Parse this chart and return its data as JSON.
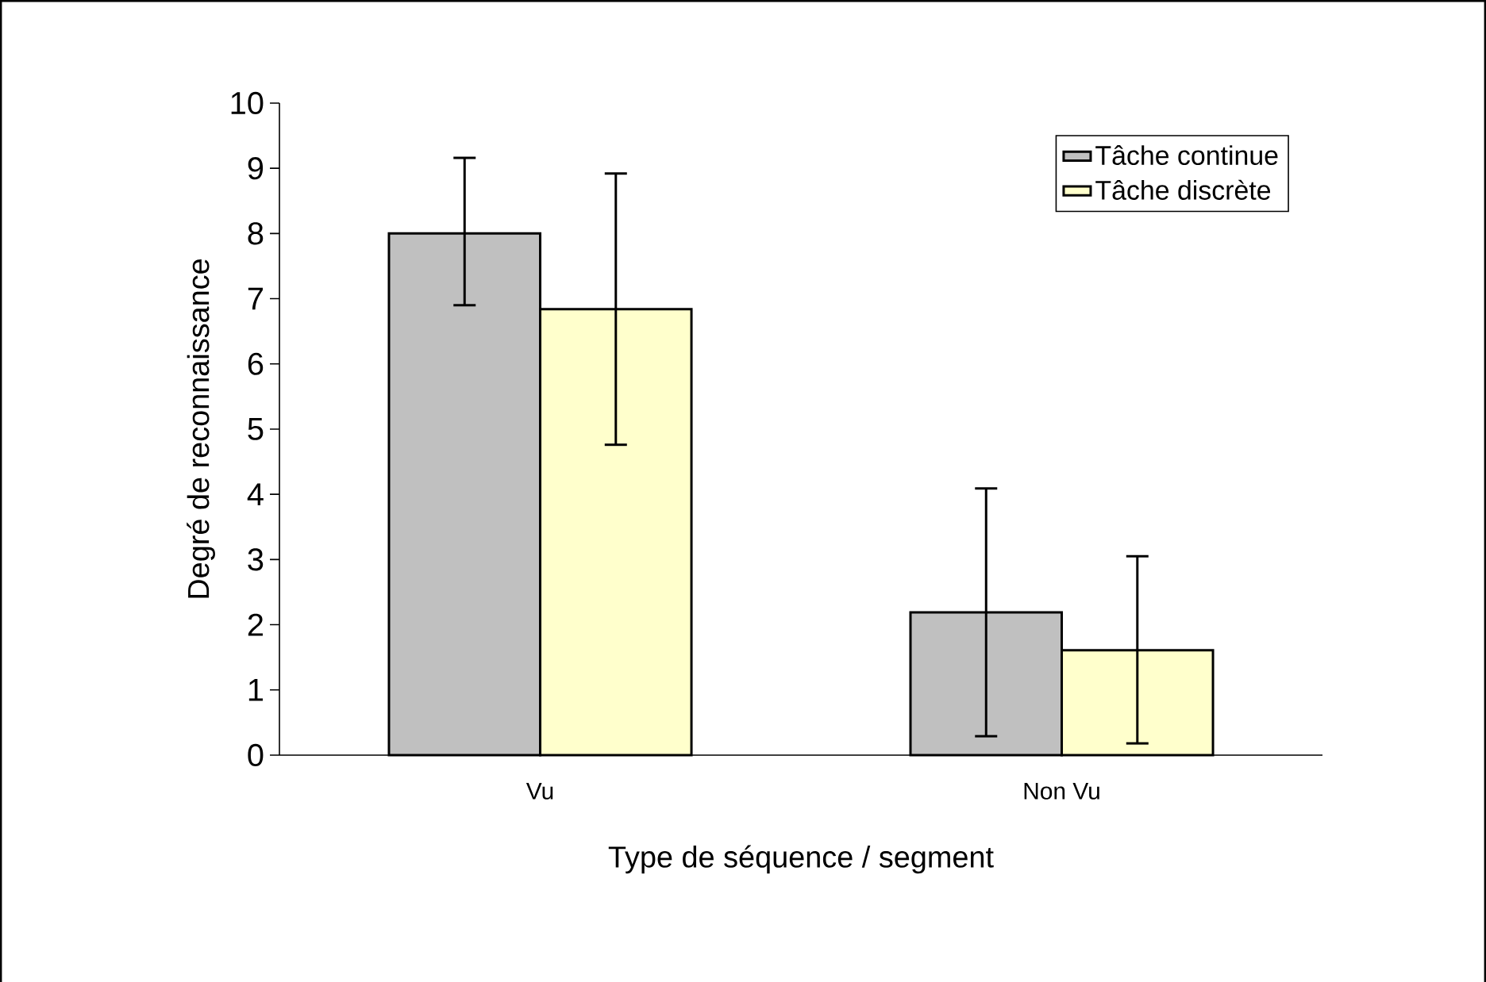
{
  "chart_data": {
    "type": "bar",
    "xlabel": "Type de séquence / segment",
    "ylabel": "Degré de reconnaissance",
    "categories": [
      "Vu",
      "Non Vu"
    ],
    "series": [
      {
        "name": "Tâche continue",
        "color": "#c0c0c0",
        "values": [
          8.0,
          2.19
        ],
        "errors": [
          [
            6.9,
            9.16
          ],
          [
            0.29,
            4.09
          ]
        ]
      },
      {
        "name": "Tâche discrète",
        "color": "#ffffcc",
        "values": [
          6.84,
          1.61
        ],
        "errors": [
          [
            4.76,
            8.92
          ],
          [
            0.18,
            3.05
          ]
        ]
      }
    ],
    "ylim": [
      0,
      10
    ],
    "yticks": [
      0,
      1,
      2,
      3,
      4,
      5,
      6,
      7,
      8,
      9,
      10
    ],
    "legend": "top right"
  }
}
